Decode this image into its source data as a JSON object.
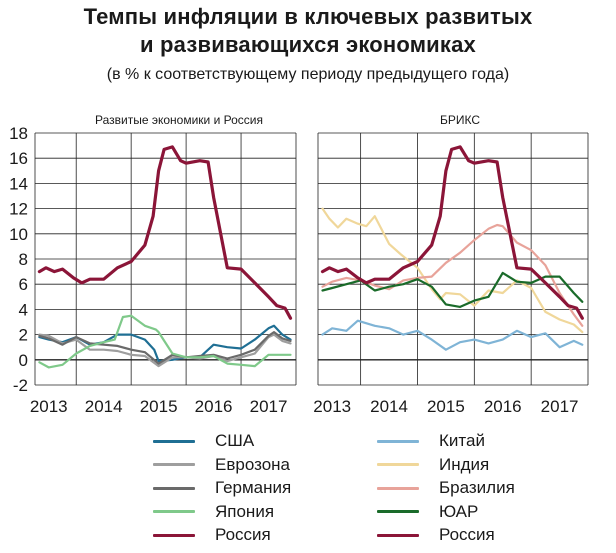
{
  "title_line1": "Темпы инфляции в ключевых развитых",
  "title_line2": "и развивающихся экономиках",
  "subtitle": "(в % к соответствующему периоду предыдущего года)",
  "chart_data": [
    {
      "type": "line",
      "title": "Развитые экономики и Россия",
      "ylim": [
        -2,
        18
      ],
      "yticks": [
        "-2",
        "0",
        "2",
        "4",
        "6",
        "8",
        "10",
        "12",
        "14",
        "16",
        "18"
      ],
      "xticks": [
        "2013",
        "2014",
        "2015",
        "2016",
        "2017"
      ],
      "xrange": [
        2012.75,
        2017.5
      ],
      "series": [
        {
          "name": "США",
          "color": "#1f6f94",
          "x": [
            2012.83,
            2013.0,
            2013.25,
            2013.5,
            2013.75,
            2014.0,
            2014.25,
            2014.5,
            2014.75,
            2014.92,
            2015.0,
            2015.25,
            2015.5,
            2015.75,
            2016.0,
            2016.25,
            2016.5,
            2016.75,
            2017.0,
            2017.1,
            2017.25,
            2017.4
          ],
          "values": [
            1.8,
            1.6,
            1.4,
            1.8,
            1.2,
            1.4,
            2.0,
            2.0,
            1.6,
            0.8,
            -0.1,
            0.0,
            0.2,
            0.2,
            1.2,
            1.0,
            0.9,
            1.6,
            2.5,
            2.7,
            2.0,
            1.6
          ]
        },
        {
          "name": "Еврозона",
          "color": "#9e9e9e",
          "x": [
            2012.83,
            2013.0,
            2013.25,
            2013.5,
            2013.75,
            2014.0,
            2014.25,
            2014.5,
            2014.75,
            2015.0,
            2015.25,
            2015.5,
            2015.75,
            2016.0,
            2016.25,
            2016.5,
            2016.75,
            2017.0,
            2017.1,
            2017.25,
            2017.4
          ],
          "values": [
            2.0,
            1.9,
            1.3,
            1.6,
            0.8,
            0.8,
            0.7,
            0.4,
            0.3,
            -0.5,
            0.2,
            0.2,
            0.1,
            0.3,
            -0.1,
            0.2,
            0.5,
            1.8,
            2.0,
            1.5,
            1.3
          ]
        },
        {
          "name": "Германия",
          "color": "#6a6a6a",
          "x": [
            2012.83,
            2013.0,
            2013.25,
            2013.5,
            2013.75,
            2014.0,
            2014.25,
            2014.5,
            2014.75,
            2015.0,
            2015.25,
            2015.5,
            2015.75,
            2016.0,
            2016.25,
            2016.5,
            2016.75,
            2017.0,
            2017.1,
            2017.25,
            2017.4
          ],
          "values": [
            1.9,
            1.7,
            1.2,
            1.8,
            1.3,
            1.2,
            1.1,
            0.8,
            0.6,
            -0.3,
            0.4,
            0.2,
            0.3,
            0.4,
            0.1,
            0.4,
            0.8,
            1.9,
            2.2,
            1.7,
            1.5
          ]
        },
        {
          "name": "Япония",
          "color": "#7fc98a",
          "x": [
            2012.83,
            2013.0,
            2013.25,
            2013.5,
            2013.75,
            2014.0,
            2014.2,
            2014.35,
            2014.5,
            2014.75,
            2014.95,
            2015.0,
            2015.25,
            2015.5,
            2015.75,
            2016.0,
            2016.25,
            2016.5,
            2016.75,
            2017.0,
            2017.25,
            2017.4
          ],
          "values": [
            -0.2,
            -0.6,
            -0.4,
            0.5,
            1.1,
            1.4,
            1.6,
            3.4,
            3.5,
            2.7,
            2.4,
            2.2,
            0.5,
            0.2,
            0.2,
            0.3,
            -0.3,
            -0.4,
            -0.5,
            0.4,
            0.4,
            0.4
          ]
        },
        {
          "name": "Россия",
          "color": "#8b1538",
          "x": [
            2012.83,
            2012.95,
            2013.1,
            2013.25,
            2013.45,
            2013.6,
            2013.75,
            2014.0,
            2014.25,
            2014.5,
            2014.75,
            2014.9,
            2015.0,
            2015.1,
            2015.25,
            2015.4,
            2015.5,
            2015.75,
            2015.9,
            2016.0,
            2016.25,
            2016.5,
            2016.75,
            2017.0,
            2017.15,
            2017.3,
            2017.4
          ],
          "values": [
            7.0,
            7.3,
            7.0,
            7.2,
            6.5,
            6.1,
            6.4,
            6.4,
            7.3,
            7.8,
            9.1,
            11.4,
            15.0,
            16.7,
            16.9,
            15.8,
            15.6,
            15.8,
            15.7,
            12.9,
            7.3,
            7.2,
            6.1,
            5.0,
            4.3,
            4.1,
            3.3
          ]
        }
      ]
    },
    {
      "type": "line",
      "title": "БРИКС",
      "ylim": [
        -2,
        18
      ],
      "xticks": [
        "2013",
        "2014",
        "2015",
        "2016",
        "2017"
      ],
      "xrange": [
        2012.75,
        2017.5
      ],
      "series": [
        {
          "name": "Китай",
          "color": "#7fb4d6",
          "x": [
            2012.83,
            2013.0,
            2013.25,
            2013.45,
            2013.75,
            2014.0,
            2014.25,
            2014.5,
            2014.75,
            2015.0,
            2015.25,
            2015.5,
            2015.75,
            2016.0,
            2016.25,
            2016.5,
            2016.75,
            2017.0,
            2017.25,
            2017.4
          ],
          "values": [
            2.0,
            2.5,
            2.3,
            3.1,
            2.7,
            2.5,
            2.0,
            2.3,
            1.6,
            0.8,
            1.4,
            1.6,
            1.3,
            1.6,
            2.3,
            1.8,
            2.1,
            1.0,
            1.5,
            1.2
          ]
        },
        {
          "name": "Индия",
          "color": "#f0d79a",
          "x": [
            2012.83,
            2012.95,
            2013.1,
            2013.25,
            2013.45,
            2013.6,
            2013.75,
            2014.0,
            2014.2,
            2014.5,
            2014.75,
            2014.9,
            2015.0,
            2015.25,
            2015.5,
            2015.75,
            2016.0,
            2016.25,
            2016.5,
            2016.75,
            2017.0,
            2017.25,
            2017.4
          ],
          "values": [
            12.0,
            11.2,
            10.5,
            11.2,
            10.8,
            10.6,
            11.4,
            9.2,
            8.4,
            7.3,
            5.6,
            4.8,
            5.3,
            5.2,
            4.3,
            5.5,
            5.3,
            6.3,
            5.7,
            3.8,
            3.2,
            2.8,
            2.2
          ]
        },
        {
          "name": "Бразилия",
          "color": "#e8a39a",
          "x": [
            2012.83,
            2013.0,
            2013.25,
            2013.5,
            2013.75,
            2014.0,
            2014.25,
            2014.5,
            2014.75,
            2015.0,
            2015.25,
            2015.5,
            2015.75,
            2015.9,
            2016.0,
            2016.25,
            2016.5,
            2016.75,
            2017.0,
            2017.25,
            2017.4
          ],
          "values": [
            5.8,
            6.2,
            6.5,
            6.3,
            5.9,
            5.6,
            6.3,
            6.5,
            6.6,
            7.7,
            8.5,
            9.5,
            10.4,
            10.7,
            10.6,
            9.3,
            8.7,
            7.5,
            5.3,
            3.6,
            2.7
          ]
        },
        {
          "name": "ЮАР",
          "color": "#1a6b2a",
          "x": [
            2012.83,
            2013.0,
            2013.25,
            2013.5,
            2013.75,
            2014.0,
            2014.25,
            2014.5,
            2014.75,
            2015.0,
            2015.25,
            2015.5,
            2015.75,
            2016.0,
            2016.25,
            2016.5,
            2016.75,
            2017.0,
            2017.25,
            2017.4
          ],
          "values": [
            5.5,
            5.7,
            6.0,
            6.3,
            5.5,
            5.8,
            6.0,
            6.4,
            5.8,
            4.4,
            4.2,
            4.7,
            5.0,
            6.9,
            6.2,
            6.1,
            6.6,
            6.6,
            5.3,
            4.6
          ]
        },
        {
          "name": "Россия",
          "color": "#8b1538",
          "x": [
            2012.83,
            2012.95,
            2013.1,
            2013.25,
            2013.45,
            2013.6,
            2013.75,
            2014.0,
            2014.25,
            2014.5,
            2014.75,
            2014.9,
            2015.0,
            2015.1,
            2015.25,
            2015.4,
            2015.5,
            2015.75,
            2015.9,
            2016.0,
            2016.25,
            2016.5,
            2016.75,
            2017.0,
            2017.15,
            2017.3,
            2017.4
          ],
          "values": [
            7.0,
            7.3,
            7.0,
            7.2,
            6.5,
            6.1,
            6.4,
            6.4,
            7.3,
            7.8,
            9.1,
            11.4,
            15.0,
            16.7,
            16.9,
            15.8,
            15.6,
            15.8,
            15.7,
            12.9,
            7.3,
            7.2,
            6.1,
            5.0,
            4.3,
            4.1,
            3.3
          ]
        }
      ]
    }
  ],
  "legend_left": [
    {
      "label": "США",
      "color": "#1f6f94"
    },
    {
      "label": "Еврозона",
      "color": "#9e9e9e"
    },
    {
      "label": "Германия",
      "color": "#6a6a6a"
    },
    {
      "label": "Япония",
      "color": "#7fc98a"
    },
    {
      "label": "Россия",
      "color": "#8b1538"
    }
  ],
  "legend_right": [
    {
      "label": "Китай",
      "color": "#7fb4d6"
    },
    {
      "label": "Индия",
      "color": "#f0d79a"
    },
    {
      "label": "Бразилия",
      "color": "#e8a39a"
    },
    {
      "label": "ЮАР",
      "color": "#1a6b2a"
    },
    {
      "label": "Россия",
      "color": "#8b1538"
    }
  ]
}
